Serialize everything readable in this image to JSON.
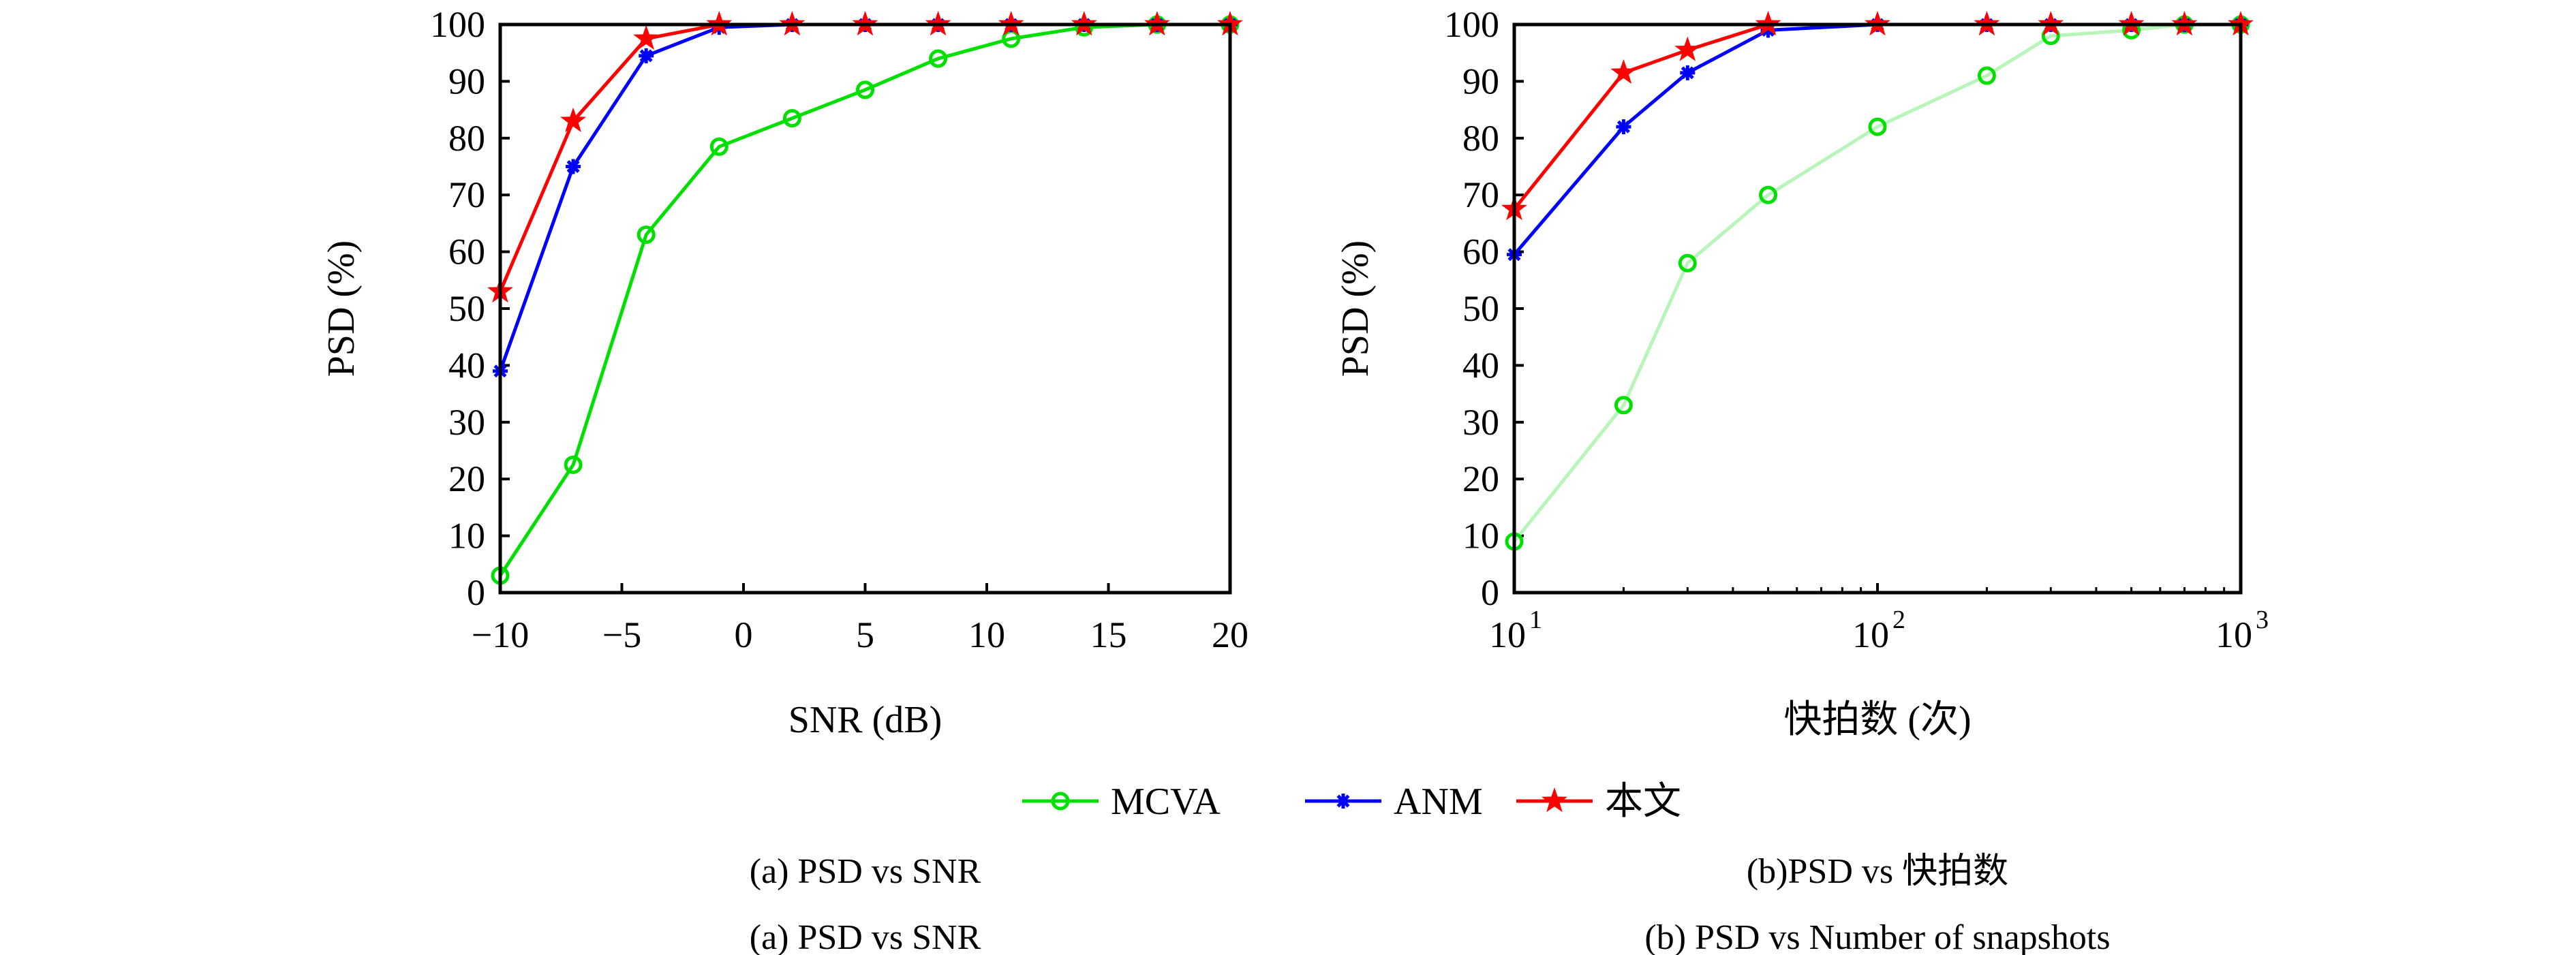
{
  "chart_data": [
    {
      "type": "line",
      "xlabel": "SNR (dB)",
      "ylabel": "PSD (%)",
      "xlim": [
        -10,
        20
      ],
      "ylim": [
        0,
        100
      ],
      "xscale": "linear",
      "xticks": [
        "−10",
        "−5",
        "0",
        "5",
        "10",
        "15",
        "20"
      ],
      "xtick_values": [
        -10,
        -5,
        0,
        5,
        10,
        15,
        20
      ],
      "yticks": [
        "0",
        "10",
        "20",
        "30",
        "40",
        "50",
        "60",
        "70",
        "80",
        "90",
        "100"
      ],
      "x": [
        -10,
        -7,
        -4,
        -1,
        2,
        5,
        8,
        11,
        14,
        17,
        20
      ],
      "series": [
        {
          "name": "MCVA",
          "color": "#00e000",
          "line_color": "#00e000",
          "marker": "circle",
          "values": [
            3,
            22.5,
            63,
            78.5,
            83.5,
            88.5,
            94,
            97.5,
            99.5,
            100,
            100
          ]
        },
        {
          "name": "ANM",
          "color": "#0000ff",
          "line_color": "#0000ff",
          "marker": "asterisk",
          "values": [
            39,
            75,
            94.5,
            99.5,
            100,
            100,
            100,
            100,
            100,
            100,
            100
          ]
        },
        {
          "name": "本文",
          "color": "#ff0000",
          "line_color": "#ff0000",
          "marker": "star",
          "values": [
            53,
            83,
            97.5,
            100,
            100,
            100,
            100,
            100,
            100,
            100,
            100
          ]
        }
      ],
      "caption": [
        "(a) PSD vs SNR",
        "(a) PSD vs SNR"
      ]
    },
    {
      "type": "line",
      "xlabel": "快拍数 (次)",
      "ylabel": "PSD (%)",
      "xlim": [
        10,
        1000
      ],
      "ylim": [
        0,
        100
      ],
      "xscale": "log",
      "xticks": [
        "10",
        "10",
        "10"
      ],
      "xtick_exponents": [
        "1",
        "2",
        "3"
      ],
      "xtick_values": [
        10,
        100,
        1000
      ],
      "yticks": [
        "0",
        "10",
        "20",
        "30",
        "40",
        "50",
        "60",
        "70",
        "80",
        "90",
        "100"
      ],
      "x": [
        10,
        20,
        30,
        50,
        100,
        200,
        300,
        500,
        700,
        1000
      ],
      "series": [
        {
          "name": "MCVA",
          "color": "#00e000",
          "line_color": "#b8f5b8",
          "marker": "circle",
          "values": [
            9,
            33,
            58,
            70,
            82,
            91,
            98,
            99,
            100,
            100
          ]
        },
        {
          "name": "ANM",
          "color": "#0000ff",
          "line_color": "#0000ff",
          "marker": "asterisk",
          "values": [
            59.5,
            82,
            91.5,
            99,
            100,
            100,
            100,
            100,
            100,
            100
          ]
        },
        {
          "name": "本文",
          "color": "#ff0000",
          "line_color": "#ff0000",
          "marker": "star",
          "values": [
            67.5,
            91.5,
            95.5,
            100,
            100,
            100,
            100,
            100,
            100,
            100
          ]
        }
      ],
      "caption": [
        "(b)PSD vs 快拍数",
        "(b) PSD vs Number of snapshots"
      ]
    }
  ],
  "legend": {
    "position": "bottom-center",
    "entries": [
      "MCVA",
      "ANM",
      "本文"
    ]
  }
}
